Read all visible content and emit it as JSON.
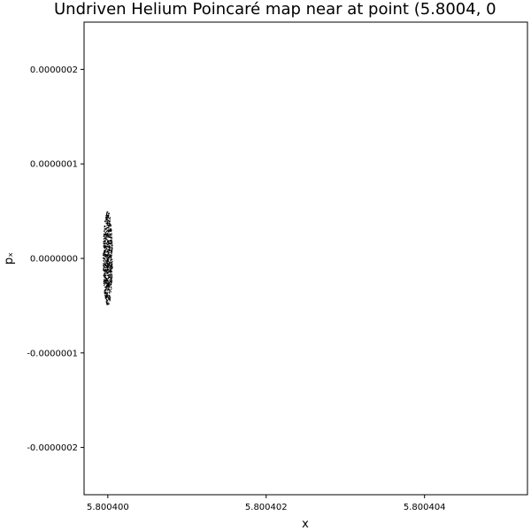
{
  "chart_data": {
    "type": "scatter",
    "title": "Undriven Helium Poincaré map near at point (5.8004, 0",
    "xlabel": "x",
    "ylabel": "pₓ",
    "xlim": [
      5.8003997,
      5.8004053
    ],
    "ylim": [
      -2.5e-07,
      2.5e-07
    ],
    "x_ticks": [
      {
        "value": 5.8004,
        "label": "5.800400"
      },
      {
        "value": 5.800402,
        "label": "5.800402"
      },
      {
        "value": 5.800404,
        "label": "5.800404"
      }
    ],
    "y_ticks": [
      {
        "value": 2e-07,
        "label": "0.0000002"
      },
      {
        "value": 1e-07,
        "label": "0.0000001"
      },
      {
        "value": 0.0,
        "label": "0.0000000"
      },
      {
        "value": -1e-07,
        "label": "-0.0000001"
      },
      {
        "value": -2e-07,
        "label": "-0.0000002"
      }
    ],
    "grid": false,
    "legend": "none",
    "marker_color": "#000000",
    "series": [
      {
        "cluster_center": [
          5.8004,
          0.0
        ],
        "cluster_x_halfwidth": 6e-08,
        "cluster_y_halfheight": 5e-08,
        "point_count": 900
      }
    ]
  }
}
